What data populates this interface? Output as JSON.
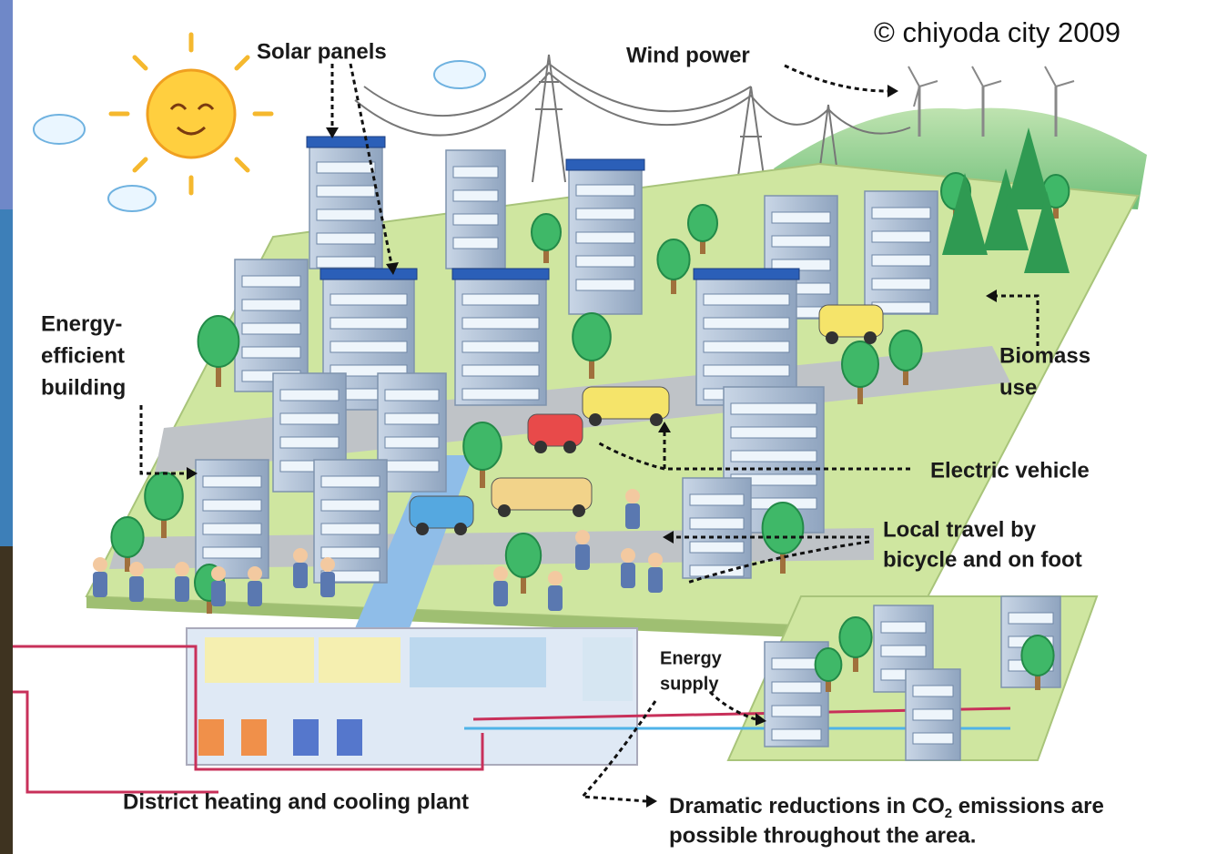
{
  "copyright": "© chiyoda city 2009",
  "labels": {
    "solar_panels": "Solar panels",
    "wind_power": "Wind power",
    "energy_efficient_building": [
      "Energy-",
      "efficient",
      "building"
    ],
    "biomass_use": [
      "Biomass",
      "use"
    ],
    "electric_vehicle": "Electric vehicle",
    "local_travel": [
      "Local travel by",
      "bicycle and on foot"
    ],
    "energy_supply": [
      "Energy",
      "supply"
    ],
    "district_heating": "District heating and cooling plant",
    "co2_note": {
      "line1": [
        "Dramatic reductions in CO",
        "2",
        " emissions are"
      ],
      "line2": "possible throughout the area."
    }
  }
}
